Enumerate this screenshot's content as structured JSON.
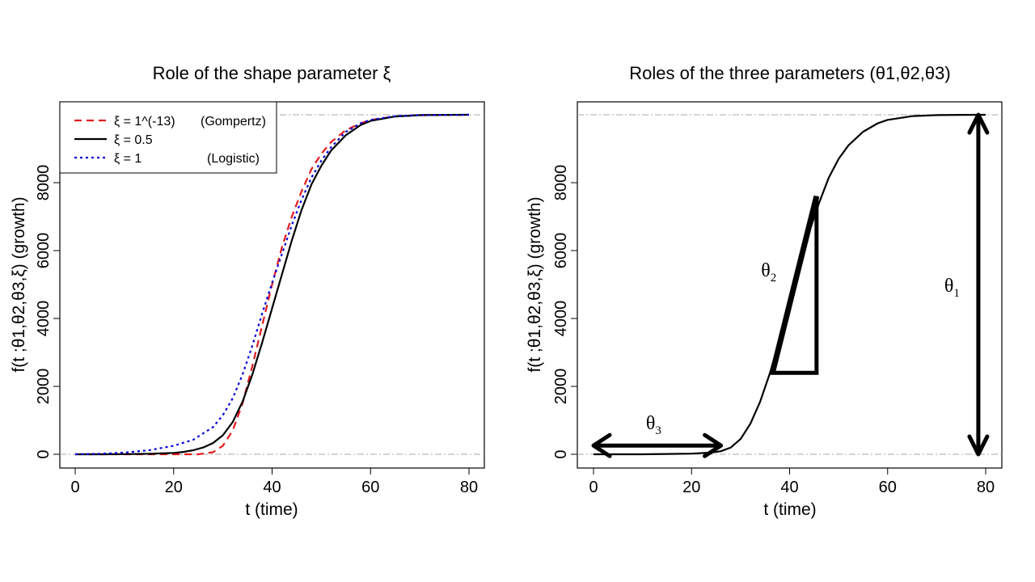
{
  "chart_data": [
    {
      "type": "line",
      "title": "Role of the shape parameter ξ",
      "xlabel": "t (time)",
      "ylabel": "f(t ;θ1,θ2,θ3,ξ) (growth)",
      "xlim": [
        0,
        80
      ],
      "ylim": [
        0,
        10000
      ],
      "xticks": [
        0,
        20,
        40,
        60,
        80
      ],
      "yticks": [
        0,
        2000,
        4000,
        6000,
        8000
      ],
      "reference_lines_y": [
        0,
        10000
      ],
      "legend_position": "top-left",
      "series": [
        {
          "name": "ξ = 1^(-13)",
          "note": "(Gompertz)",
          "color": "#e41a1c",
          "dash": "dashed",
          "x": [
            0,
            5,
            10,
            15,
            20,
            25,
            28,
            30,
            32,
            34,
            36,
            38,
            40,
            42,
            44,
            46,
            48,
            50,
            52,
            55,
            58,
            60,
            65,
            70,
            75,
            80
          ],
          "y": [
            0,
            0,
            0,
            0,
            0,
            0,
            60,
            250,
            700,
            1500,
            2600,
            3800,
            5000,
            6100,
            7000,
            7750,
            8400,
            8850,
            9200,
            9550,
            9750,
            9850,
            9950,
            9985,
            9995,
            10000
          ]
        },
        {
          "name": "ξ = 0.5",
          "note": "",
          "color": "#000000",
          "dash": "solid",
          "x": [
            0,
            5,
            10,
            15,
            20,
            22,
            24,
            26,
            28,
            30,
            32,
            34,
            36,
            38,
            40,
            42,
            44,
            46,
            48,
            50,
            52,
            55,
            58,
            60,
            65,
            70,
            75,
            80
          ],
          "y": [
            0,
            0,
            5,
            15,
            40,
            70,
            120,
            200,
            330,
            560,
            950,
            1550,
            2350,
            3300,
            4300,
            5300,
            6300,
            7200,
            7950,
            8500,
            8950,
            9400,
            9700,
            9820,
            9950,
            9990,
            9998,
            10000
          ]
        },
        {
          "name": "ξ = 1",
          "note": "(Logistic)",
          "color": "#0000dd",
          "dash": "dotted",
          "x": [
            0,
            5,
            10,
            15,
            20,
            24,
            28,
            30,
            32,
            34,
            36,
            38,
            40,
            42,
            44,
            46,
            48,
            50,
            52,
            55,
            58,
            60,
            65,
            70,
            75,
            80
          ],
          "y": [
            0,
            15,
            50,
            120,
            250,
            430,
            800,
            1150,
            1650,
            2350,
            3200,
            4150,
            5050,
            5900,
            6750,
            7500,
            8150,
            8650,
            9050,
            9500,
            9750,
            9850,
            9960,
            9990,
            9998,
            10000
          ]
        }
      ]
    },
    {
      "type": "line",
      "title": "Roles of the three parameters (θ1,θ2,θ3)",
      "xlabel": "t (time)",
      "ylabel": "f(t ;θ1,θ2,θ3,ξ) (growth)",
      "xlim": [
        0,
        80
      ],
      "ylim": [
        0,
        10000
      ],
      "xticks": [
        0,
        20,
        40,
        60,
        80
      ],
      "yticks": [
        0,
        2000,
        4000,
        6000,
        8000
      ],
      "reference_lines_y": [
        0,
        10000
      ],
      "series": [
        {
          "color": "#000000",
          "dash": "solid",
          "x": [
            0,
            10,
            15,
            20,
            24,
            26,
            28,
            30,
            32,
            34,
            36,
            38,
            40,
            42,
            44,
            46,
            48,
            50,
            52,
            55,
            58,
            60,
            65,
            70,
            75,
            80
          ],
          "y": [
            0,
            0,
            10,
            20,
            50,
            90,
            200,
            450,
            900,
            1550,
            2400,
            3400,
            4500,
            5550,
            6550,
            7400,
            8150,
            8700,
            9100,
            9500,
            9750,
            9850,
            9960,
            9990,
            9998,
            10000
          ]
        }
      ],
      "annotations": [
        {
          "label": "θ3",
          "kind": "double-arrow-horizontal",
          "x": [
            0,
            26
          ],
          "y": 400
        },
        {
          "label": "θ2",
          "kind": "slope-triangle",
          "x": [
            36.5,
            45.5
          ],
          "y": [
            2400,
            7600
          ]
        },
        {
          "label": "θ1",
          "kind": "double-arrow-vertical",
          "x": 78.5,
          "y": [
            0,
            10000
          ]
        }
      ]
    }
  ]
}
